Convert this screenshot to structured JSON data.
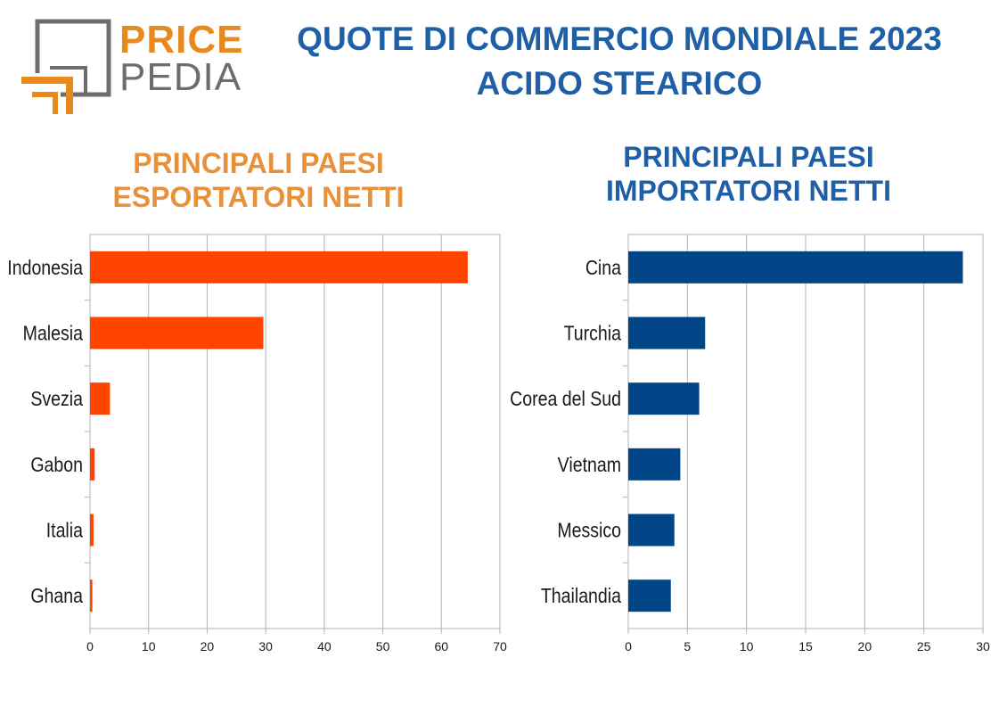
{
  "logo": {
    "word1": "PRICE",
    "word2": "PEDIA"
  },
  "title": {
    "line1": "QUOTE DI COMMERCIO MONDIALE 2023",
    "line2": "ACIDO STEARICO"
  },
  "colors": {
    "export": "#ff4400",
    "import": "#004586",
    "title": "#1f5fa6",
    "export_heading": "#e8913a"
  },
  "chart_data": [
    {
      "type": "bar",
      "orientation": "horizontal",
      "title": "PRINCIPALI PAESI ESPORTATORI NETTI",
      "title_lines": [
        "PRINCIPALI PAESI",
        "ESPORTATORI NETTI"
      ],
      "categories": [
        "Indonesia",
        "Malesia",
        "Svezia",
        "Gabon",
        "Italia",
        "Ghana"
      ],
      "values": [
        64.5,
        29.6,
        3.4,
        0.8,
        0.6,
        0.4
      ],
      "xlim": [
        0,
        70
      ],
      "xticks": [
        0,
        10,
        20,
        30,
        40,
        50,
        60,
        70
      ],
      "grid": true,
      "color": "#ff4400"
    },
    {
      "type": "bar",
      "orientation": "horizontal",
      "title": "PRINCIPALI PAESI IMPORTATORI NETTI",
      "title_lines": [
        "PRINCIPALI PAESI",
        "IMPORTATORI NETTI"
      ],
      "categories": [
        "Cina",
        "Turchia",
        "Corea del Sud",
        "Vietnam",
        "Messico",
        "Thailandia"
      ],
      "values": [
        28.3,
        6.5,
        6.0,
        4.4,
        3.9,
        3.6
      ],
      "xlim": [
        0,
        30
      ],
      "xticks": [
        0,
        5,
        10,
        15,
        20,
        25,
        30
      ],
      "grid": true,
      "color": "#004586"
    }
  ]
}
